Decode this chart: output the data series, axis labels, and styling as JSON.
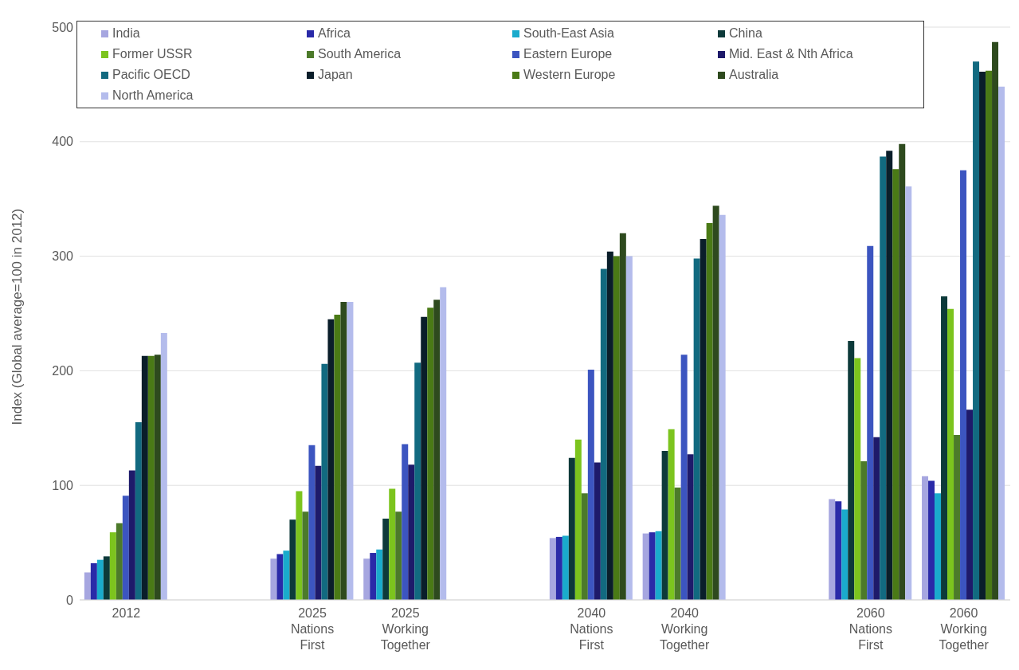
{
  "chart_data": {
    "type": "bar",
    "ylabel": "Index (Global average=100 in 2012)",
    "categories": [
      "2012",
      null,
      "2025 Nations First",
      "2025 Working Together",
      null,
      "2040 Nations First",
      "2040 Working Together",
      null,
      "2060 Nations First",
      "2060 Working Together"
    ],
    "series": [
      {
        "name": "India",
        "color": "#a6a6e0",
        "values": [
          24,
          null,
          36,
          36,
          null,
          54,
          58,
          null,
          88,
          108
        ]
      },
      {
        "name": "Africa",
        "color": "#2a2aa8",
        "values": [
          32,
          null,
          40,
          41,
          null,
          55,
          59,
          null,
          86,
          104
        ]
      },
      {
        "name": "South-East Asia",
        "color": "#1aabcc",
        "values": [
          35,
          null,
          43,
          44,
          null,
          56,
          60,
          null,
          79,
          93
        ]
      },
      {
        "name": "China",
        "color": "#0d3a3a",
        "values": [
          38,
          null,
          70,
          71,
          null,
          124,
          130,
          null,
          226,
          265
        ]
      },
      {
        "name": "Former USSR",
        "color": "#7cc41e",
        "values": [
          59,
          null,
          95,
          97,
          null,
          140,
          149,
          null,
          211,
          254
        ]
      },
      {
        "name": "South America",
        "color": "#4c7a2a",
        "values": [
          67,
          null,
          77,
          77,
          null,
          93,
          98,
          null,
          121,
          144
        ]
      },
      {
        "name": "Eastern Europe",
        "color": "#3c55c0",
        "values": [
          91,
          null,
          135,
          136,
          null,
          201,
          214,
          null,
          309,
          375
        ]
      },
      {
        "name": "Mid. East & Nth Africa",
        "color": "#1e1a6a",
        "values": [
          113,
          null,
          117,
          118,
          null,
          120,
          127,
          null,
          142,
          166
        ]
      },
      {
        "name": "Pacific OECD",
        "color": "#126a80",
        "values": [
          155,
          null,
          206,
          207,
          null,
          289,
          298,
          null,
          387,
          470
        ]
      },
      {
        "name": "Japan",
        "color": "#0a1e2a",
        "values": [
          213,
          null,
          245,
          247,
          null,
          304,
          315,
          null,
          392,
          461
        ]
      },
      {
        "name": "Western Europe",
        "color": "#4a7a16",
        "values": [
          213,
          null,
          249,
          255,
          null,
          300,
          329,
          null,
          376,
          462
        ]
      },
      {
        "name": "Australia",
        "color": "#2e4a1e",
        "values": [
          214,
          null,
          260,
          262,
          null,
          320,
          344,
          null,
          398,
          487
        ]
      },
      {
        "name": "North America",
        "color": "#b4bcec",
        "values": [
          233,
          null,
          260,
          273,
          null,
          300,
          336,
          null,
          361,
          448
        ]
      }
    ],
    "ylim": [
      0,
      500
    ],
    "yticks": [
      0,
      100,
      200,
      300,
      400,
      500
    ],
    "grid": "y",
    "legend": "top"
  }
}
